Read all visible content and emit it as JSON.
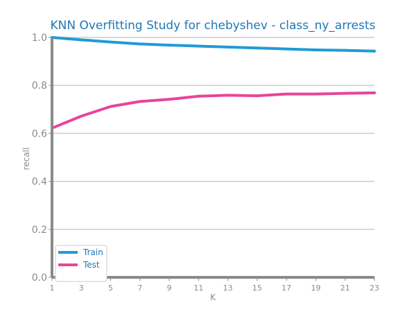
{
  "chart_data": {
    "type": "line",
    "title": "KNN Overfitting Study for chebyshev - class_ny_arrests",
    "xlabel": "K",
    "ylabel": "recall",
    "x": [
      1,
      3,
      5,
      7,
      9,
      11,
      13,
      15,
      17,
      19,
      21,
      23
    ],
    "x_ticks": [
      1,
      3,
      5,
      7,
      9,
      11,
      13,
      15,
      17,
      19,
      21,
      23
    ],
    "y_ticks": [
      0.0,
      0.2,
      0.4,
      0.6,
      0.8,
      1.0
    ],
    "y_tick_labels": [
      "0.0",
      "0.2",
      "0.4",
      "0.6",
      "0.8",
      "1.0"
    ],
    "xlim": [
      1,
      23
    ],
    "ylim": [
      0,
      1.0
    ],
    "grid": "horizontal",
    "legend_position": "lower-left",
    "series": [
      {
        "name": "Train",
        "color": "#1f9ad6",
        "values": [
          1.0,
          0.99,
          0.981,
          0.973,
          0.968,
          0.964,
          0.96,
          0.956,
          0.952,
          0.948,
          0.946,
          0.943
        ]
      },
      {
        "name": "Test",
        "color": "#e8449a",
        "values": [
          0.622,
          0.672,
          0.712,
          0.733,
          0.742,
          0.755,
          0.759,
          0.757,
          0.764,
          0.764,
          0.767,
          0.769
        ]
      }
    ]
  }
}
